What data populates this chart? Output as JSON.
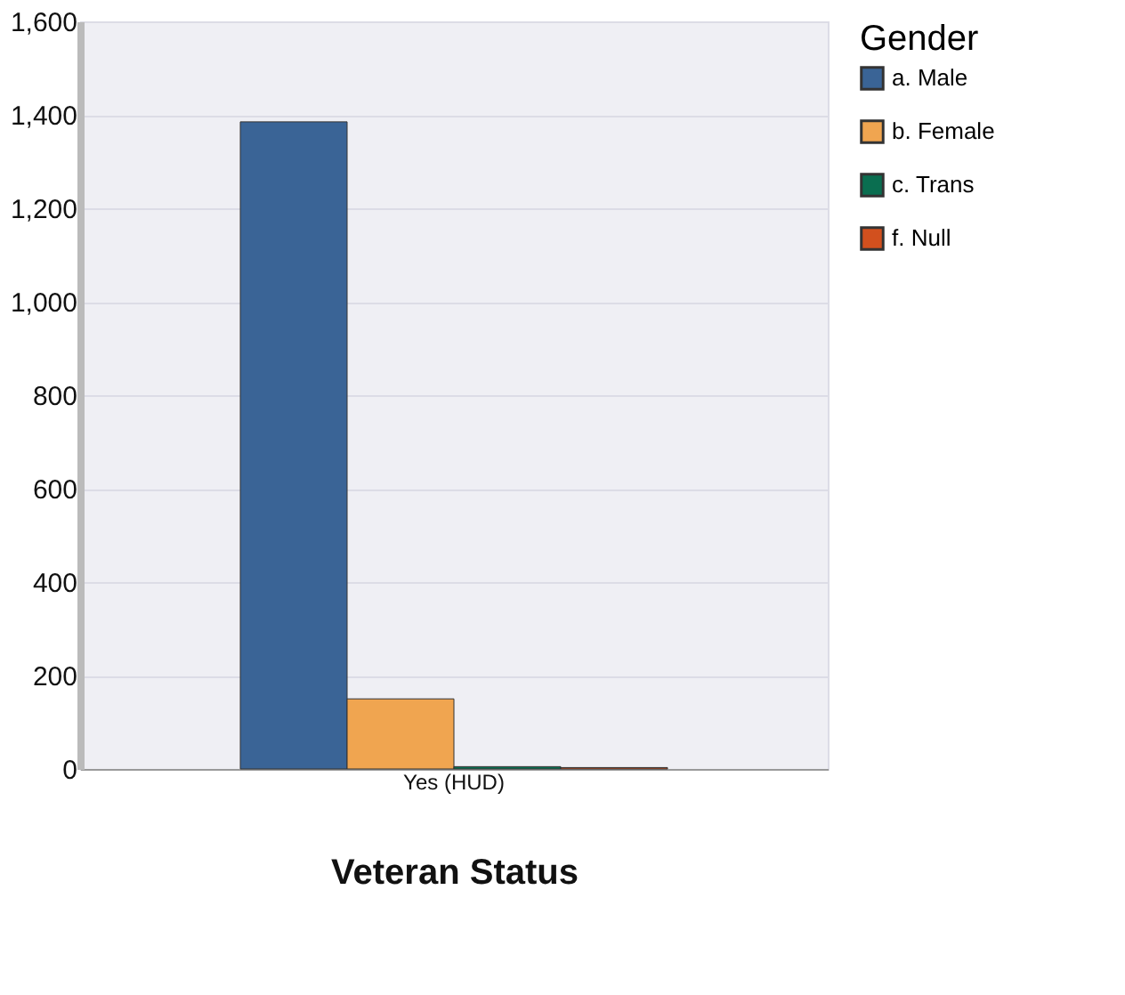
{
  "chart_data": {
    "type": "bar",
    "xlabel": "Veteran Status",
    "legend_title": "Gender",
    "categories": [
      "Yes (HUD)"
    ],
    "series": [
      {
        "name": "a. Male",
        "color": "#3a6496",
        "values": [
          1385
        ]
      },
      {
        "name": "b. Female",
        "color": "#f0a550",
        "values": [
          150
        ]
      },
      {
        "name": "c. Trans",
        "color": "#0a6e50",
        "values": [
          5
        ]
      },
      {
        "name": "f. Null",
        "color": "#d2501e",
        "values": [
          3
        ]
      }
    ],
    "ylim": [
      0,
      1600
    ],
    "yticks": [
      0,
      200,
      400,
      600,
      800,
      {
        "value": 1000,
        "label": "1,000"
      },
      {
        "value": 1200,
        "label": "1,200"
      },
      {
        "value": 1400,
        "label": "1,400"
      },
      {
        "value": 1600,
        "label": "1,600"
      }
    ],
    "grid": "y",
    "legend": "right"
  }
}
